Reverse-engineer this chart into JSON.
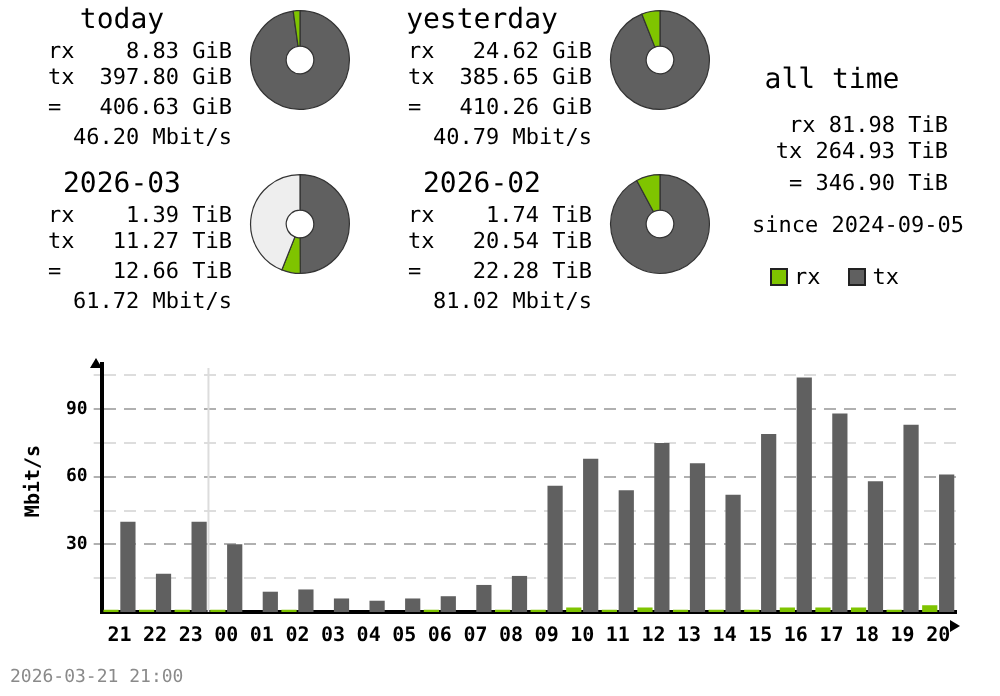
{
  "chart_data": [
    {
      "type": "donut",
      "title": "today",
      "categories": [
        null,
        null
      ],
      "values": [
        2.2,
        97.8
      ],
      "colors": [
        "#7fc400",
        "#606060"
      ],
      "annotations": [
        "rx 8.83 GiB",
        "tx 397.80 GiB",
        "= 406.63 GiB",
        "46.20 Mbit/s"
      ]
    },
    {
      "type": "donut",
      "title": "yesterday",
      "categories": [
        null,
        null
      ],
      "values": [
        6,
        94
      ],
      "colors": [
        "#7fc400",
        "#606060"
      ],
      "annotations": [
        "rx 24.62 GiB",
        "tx 385.65 GiB",
        "= 410.26 GiB",
        "40.79 Mbit/s"
      ]
    },
    {
      "type": "donut",
      "title": "2026-03",
      "categories": [
        null,
        null,
        null
      ],
      "values": [
        6.1,
        49.9,
        44
      ],
      "colors": [
        "#7fc400",
        "#606060",
        "#eeeeee"
      ],
      "annotations": [
        "rx 1.39 TiB",
        "tx 11.27 TiB",
        "= 12.66 TiB",
        "61.72 Mbit/s"
      ]
    },
    {
      "type": "donut",
      "title": "2026-02",
      "categories": [
        null,
        null
      ],
      "values": [
        7.8,
        92.2
      ],
      "colors": [
        "#7fc400",
        "#606060"
      ],
      "annotations": [
        "rx 1.74 TiB",
        "tx 20.54 TiB",
        "= 22.28 TiB",
        "81.02 Mbit/s"
      ]
    },
    {
      "type": "other",
      "title": "all time",
      "annotations": [
        "rx 81.98 TiB",
        "tx 264.93 TiB",
        "= 346.90 TiB",
        "since 2024-09-05"
      ]
    },
    {
      "type": "bar",
      "ylabel": "Mbit/s",
      "categories": [
        "21",
        "22",
        "23",
        "00",
        "01",
        "02",
        "03",
        "04",
        "05",
        "06",
        "07",
        "08",
        "09",
        "10",
        "11",
        "12",
        "13",
        "14",
        "15",
        "16",
        "17",
        "18",
        "19",
        "20"
      ],
      "series": [
        {
          "name": "rx",
          "color": "#7fc400",
          "values": [
            1,
            1,
            1,
            1,
            0,
            1,
            0,
            0,
            0,
            1,
            0,
            1,
            1,
            2,
            1,
            2,
            1,
            1,
            1,
            2,
            2,
            2,
            1,
            3
          ]
        },
        {
          "name": "tx",
          "color": "#606060",
          "values": [
            40,
            17,
            40,
            30,
            9,
            10,
            6,
            5,
            6,
            7,
            12,
            16,
            56,
            68,
            54,
            75,
            66,
            52,
            79,
            104,
            88,
            58,
            83,
            61
          ]
        }
      ],
      "ylim": [
        0,
        110
      ],
      "yticks": [
        {
          "value": 15,
          "label": null
        },
        30,
        {
          "value": 45,
          "label": null
        },
        60,
        {
          "value": 75,
          "label": null
        },
        90,
        {
          "value": 105,
          "label": null
        }
      ],
      "grid": "y",
      "legend": "top right",
      "ref_lines": [
        {
          "axis": "x",
          "value": "00",
          "color": "#dcdcdc"
        }
      ],
      "annotations": [
        "2026-03-21 21:00"
      ]
    }
  ]
}
